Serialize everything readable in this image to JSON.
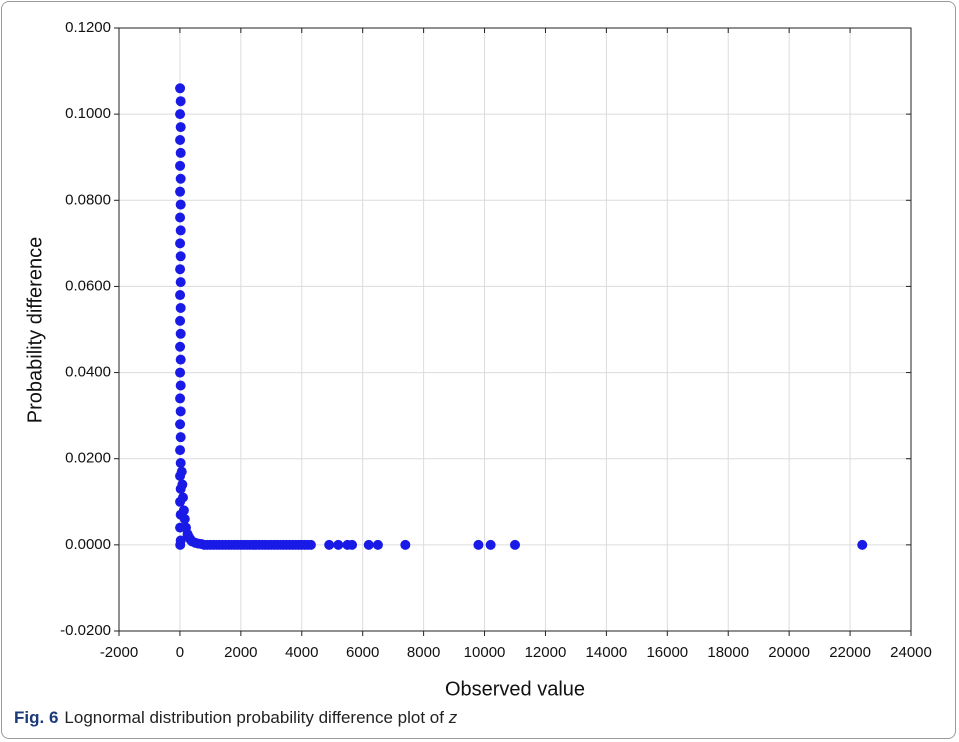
{
  "chart_data": {
    "type": "scatter",
    "x_label": "Observed value",
    "y_label": "Probability difference",
    "xlim": [
      -2000,
      24000
    ],
    "ylim": [
      -0.02,
      0.12
    ],
    "xticks": [
      -2000,
      0,
      2000,
      4000,
      6000,
      8000,
      10000,
      12000,
      14000,
      16000,
      18000,
      20000,
      22000,
      24000
    ],
    "yticks": [
      {
        "value": -0.02,
        "label": "-0.0200"
      },
      {
        "value": 0,
        "label": "0.0000"
      },
      {
        "value": 0.02,
        "label": "0.0200"
      },
      {
        "value": 0.04,
        "label": "0.0400"
      },
      {
        "value": 0.06,
        "label": "0.0600"
      },
      {
        "value": 0.08,
        "label": "0.0800"
      },
      {
        "value": 0.1,
        "label": "0.1000"
      },
      {
        "value": 0.12,
        "label": "0.1200"
      }
    ],
    "grid": true,
    "series": [
      {
        "color": "#1a1ae6",
        "x": [
          5,
          25,
          5,
          25,
          5,
          25,
          5,
          25,
          5,
          25,
          5,
          25,
          5,
          25,
          5,
          25,
          5,
          25,
          5,
          25,
          5,
          25,
          5,
          25,
          5,
          25,
          5,
          25,
          5,
          25,
          5,
          25,
          5,
          25,
          5,
          25,
          10,
          60,
          80,
          100,
          130,
          160,
          200,
          250,
          300,
          350,
          400,
          500,
          600,
          700,
          800,
          900,
          1000,
          1100,
          1200,
          1300,
          1400,
          1500,
          1600,
          1700,
          1800,
          1900,
          2000,
          2100,
          2200,
          2300,
          2400,
          2500,
          2600,
          2700,
          2800,
          2900,
          3000,
          3100,
          3200,
          3300,
          3400,
          3500,
          3600,
          3700,
          3800,
          3900,
          4000,
          4100,
          4200,
          4300,
          4900,
          5200,
          5500,
          5650,
          6200,
          6500,
          7400,
          9800,
          10200,
          11000,
          22400
        ],
        "values": [
          0.106,
          0.103,
          0.1,
          0.097,
          0.094,
          0.091,
          0.088,
          0.085,
          0.082,
          0.079,
          0.076,
          0.073,
          0.07,
          0.067,
          0.064,
          0.061,
          0.058,
          0.055,
          0.052,
          0.049,
          0.046,
          0.043,
          0.04,
          0.037,
          0.034,
          0.031,
          0.028,
          0.025,
          0.022,
          0.019,
          0.016,
          0.013,
          0.01,
          0.007,
          0.004,
          0.001,
          0,
          0.017,
          0.014,
          0.011,
          0.008,
          0.006,
          0.004,
          0.0025,
          0.0018,
          0.0012,
          0.0008,
          0.0005,
          0.0003,
          0.0002,
          0,
          0,
          0,
          0,
          0,
          0,
          0,
          0,
          0,
          0,
          0,
          0,
          0,
          0,
          0,
          0,
          0,
          0,
          0,
          0,
          0,
          0,
          0,
          0,
          0,
          0,
          0,
          0,
          0,
          0,
          0,
          0,
          0,
          0,
          0,
          0,
          0,
          0,
          0,
          0,
          0,
          0,
          0,
          0,
          0,
          0,
          0
        ]
      }
    ]
  },
  "figure_caption": {
    "label": "Fig. 6",
    "text": "Lognormal distribution probability difference plot of",
    "variable": "z"
  }
}
